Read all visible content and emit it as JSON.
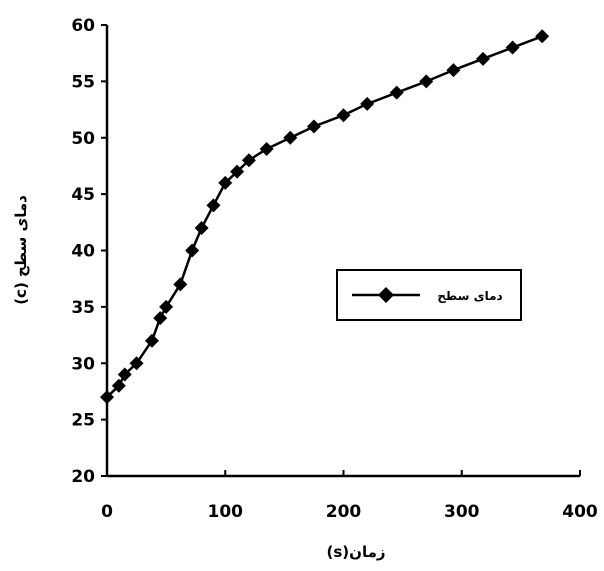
{
  "chart_data": {
    "type": "line",
    "title": "",
    "xlabel": "زمان(s)",
    "ylabel": "دمای سطح (c)",
    "xlim": [
      0,
      400
    ],
    "ylim": [
      20,
      60
    ],
    "x_ticks": [
      0,
      100,
      200,
      300,
      400
    ],
    "y_ticks": [
      20,
      25,
      30,
      35,
      40,
      45,
      50,
      55,
      60
    ],
    "grid": false,
    "legend_position": "right",
    "series": [
      {
        "name": "دمای سطح",
        "color": "#000000",
        "marker": "diamond",
        "x": [
          0,
          10,
          15,
          25,
          38,
          45,
          50,
          62,
          72,
          80,
          90,
          100,
          110,
          120,
          135,
          155,
          175,
          200,
          220,
          245,
          270,
          293,
          318,
          343,
          368
        ],
        "y": [
          27,
          28,
          29,
          30,
          32,
          34,
          35,
          37,
          40,
          42,
          44,
          46,
          47,
          48,
          49,
          50,
          51,
          52,
          53,
          54,
          55,
          56,
          57,
          58,
          59
        ]
      }
    ]
  }
}
